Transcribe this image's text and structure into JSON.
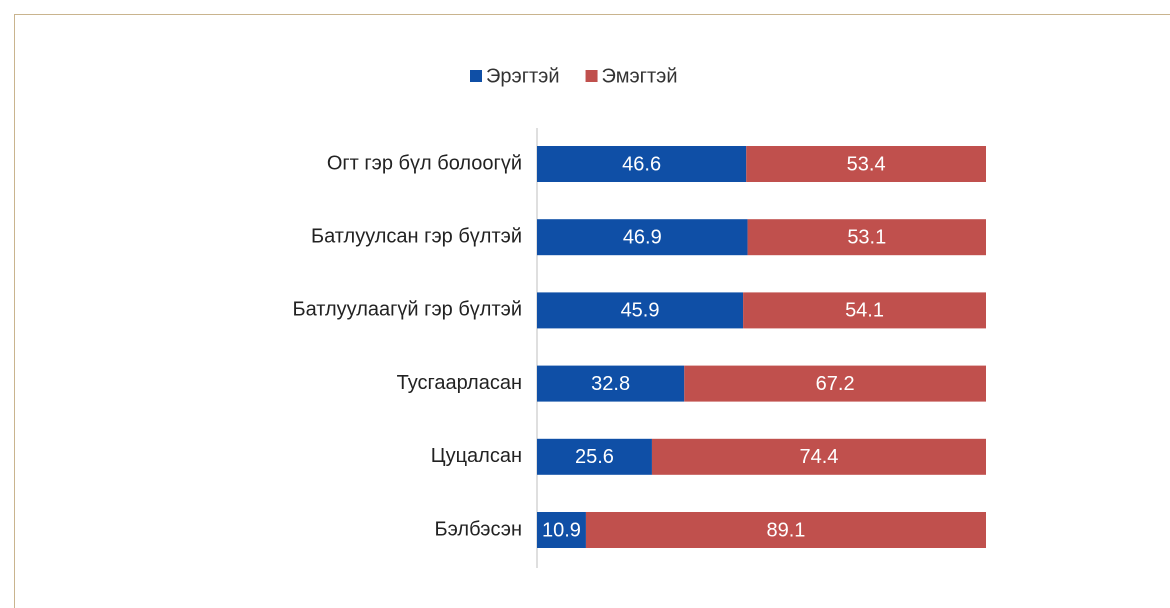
{
  "chart_data": {
    "type": "stacked_barh",
    "categories": [
      "Огт гэр бүл болоогүй",
      "Батлуулсан гэр бүлтэй",
      "Батлуулаагүй гэр бүлтэй",
      "Тусгаарласан",
      "Цуцалсан",
      "Бэлбэсэн"
    ],
    "series": [
      {
        "name": "Эрэгтэй",
        "color": "#0f4fa6",
        "values": [
          46.6,
          46.9,
          45.9,
          32.8,
          25.6,
          10.9
        ]
      },
      {
        "name": "Эмэгтэй",
        "color": "#c0504d",
        "values": [
          53.4,
          53.1,
          54.1,
          67.2,
          74.4,
          89.1
        ]
      }
    ],
    "xlim": [
      0,
      100
    ],
    "legend": "top"
  }
}
